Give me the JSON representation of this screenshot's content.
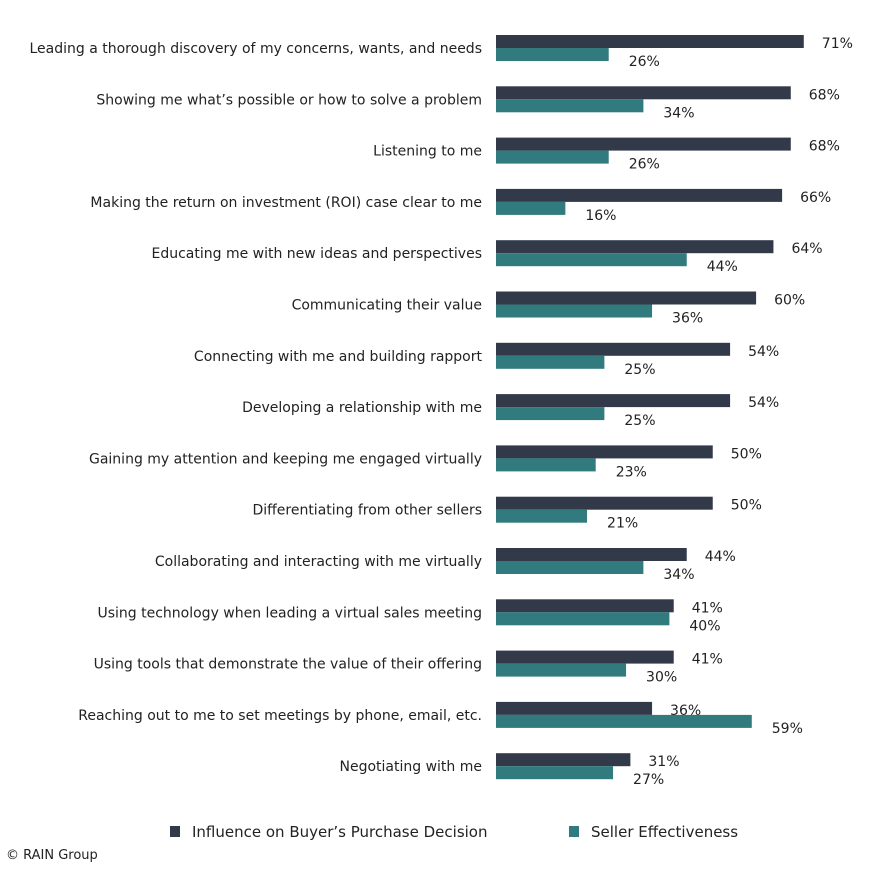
{
  "chart_data": {
    "type": "bar",
    "orientation": "horizontal",
    "categories": [
      "Leading a thorough discovery of my concerns, wants, and needs",
      "Showing me what’s possible or how to solve a problem",
      "Listening to me",
      "Making the return on investment (ROI) case clear to me",
      "Educating me with new ideas and perspectives",
      "Communicating their value",
      "Connecting with me and building rapport",
      "Developing a relationship with me",
      "Gaining my attention and keeping me engaged virtually",
      "Differentiating from other sellers",
      "Collaborating and interacting with me virtually",
      "Using technology when leading a virtual sales meeting",
      "Using tools that demonstrate the value of their offering",
      "Reaching out to me to set meetings by phone, email, etc.",
      "Negotiating with me"
    ],
    "series": [
      {
        "name": "Influence on Buyer’s Purchase Decision",
        "color": "#323a4a",
        "values": [
          71,
          68,
          68,
          66,
          64,
          60,
          54,
          54,
          50,
          50,
          44,
          41,
          41,
          36,
          31
        ]
      },
      {
        "name": "Seller Effectiveness",
        "color": "#317a7d",
        "values": [
          26,
          34,
          26,
          16,
          44,
          36,
          25,
          25,
          23,
          21,
          34,
          40,
          30,
          59,
          27
        ]
      }
    ],
    "value_suffix": "%",
    "xlim": [
      0,
      100
    ],
    "grid": false,
    "legend_position": "bottom"
  },
  "footer": {
    "copyright": "© RAIN Group"
  }
}
